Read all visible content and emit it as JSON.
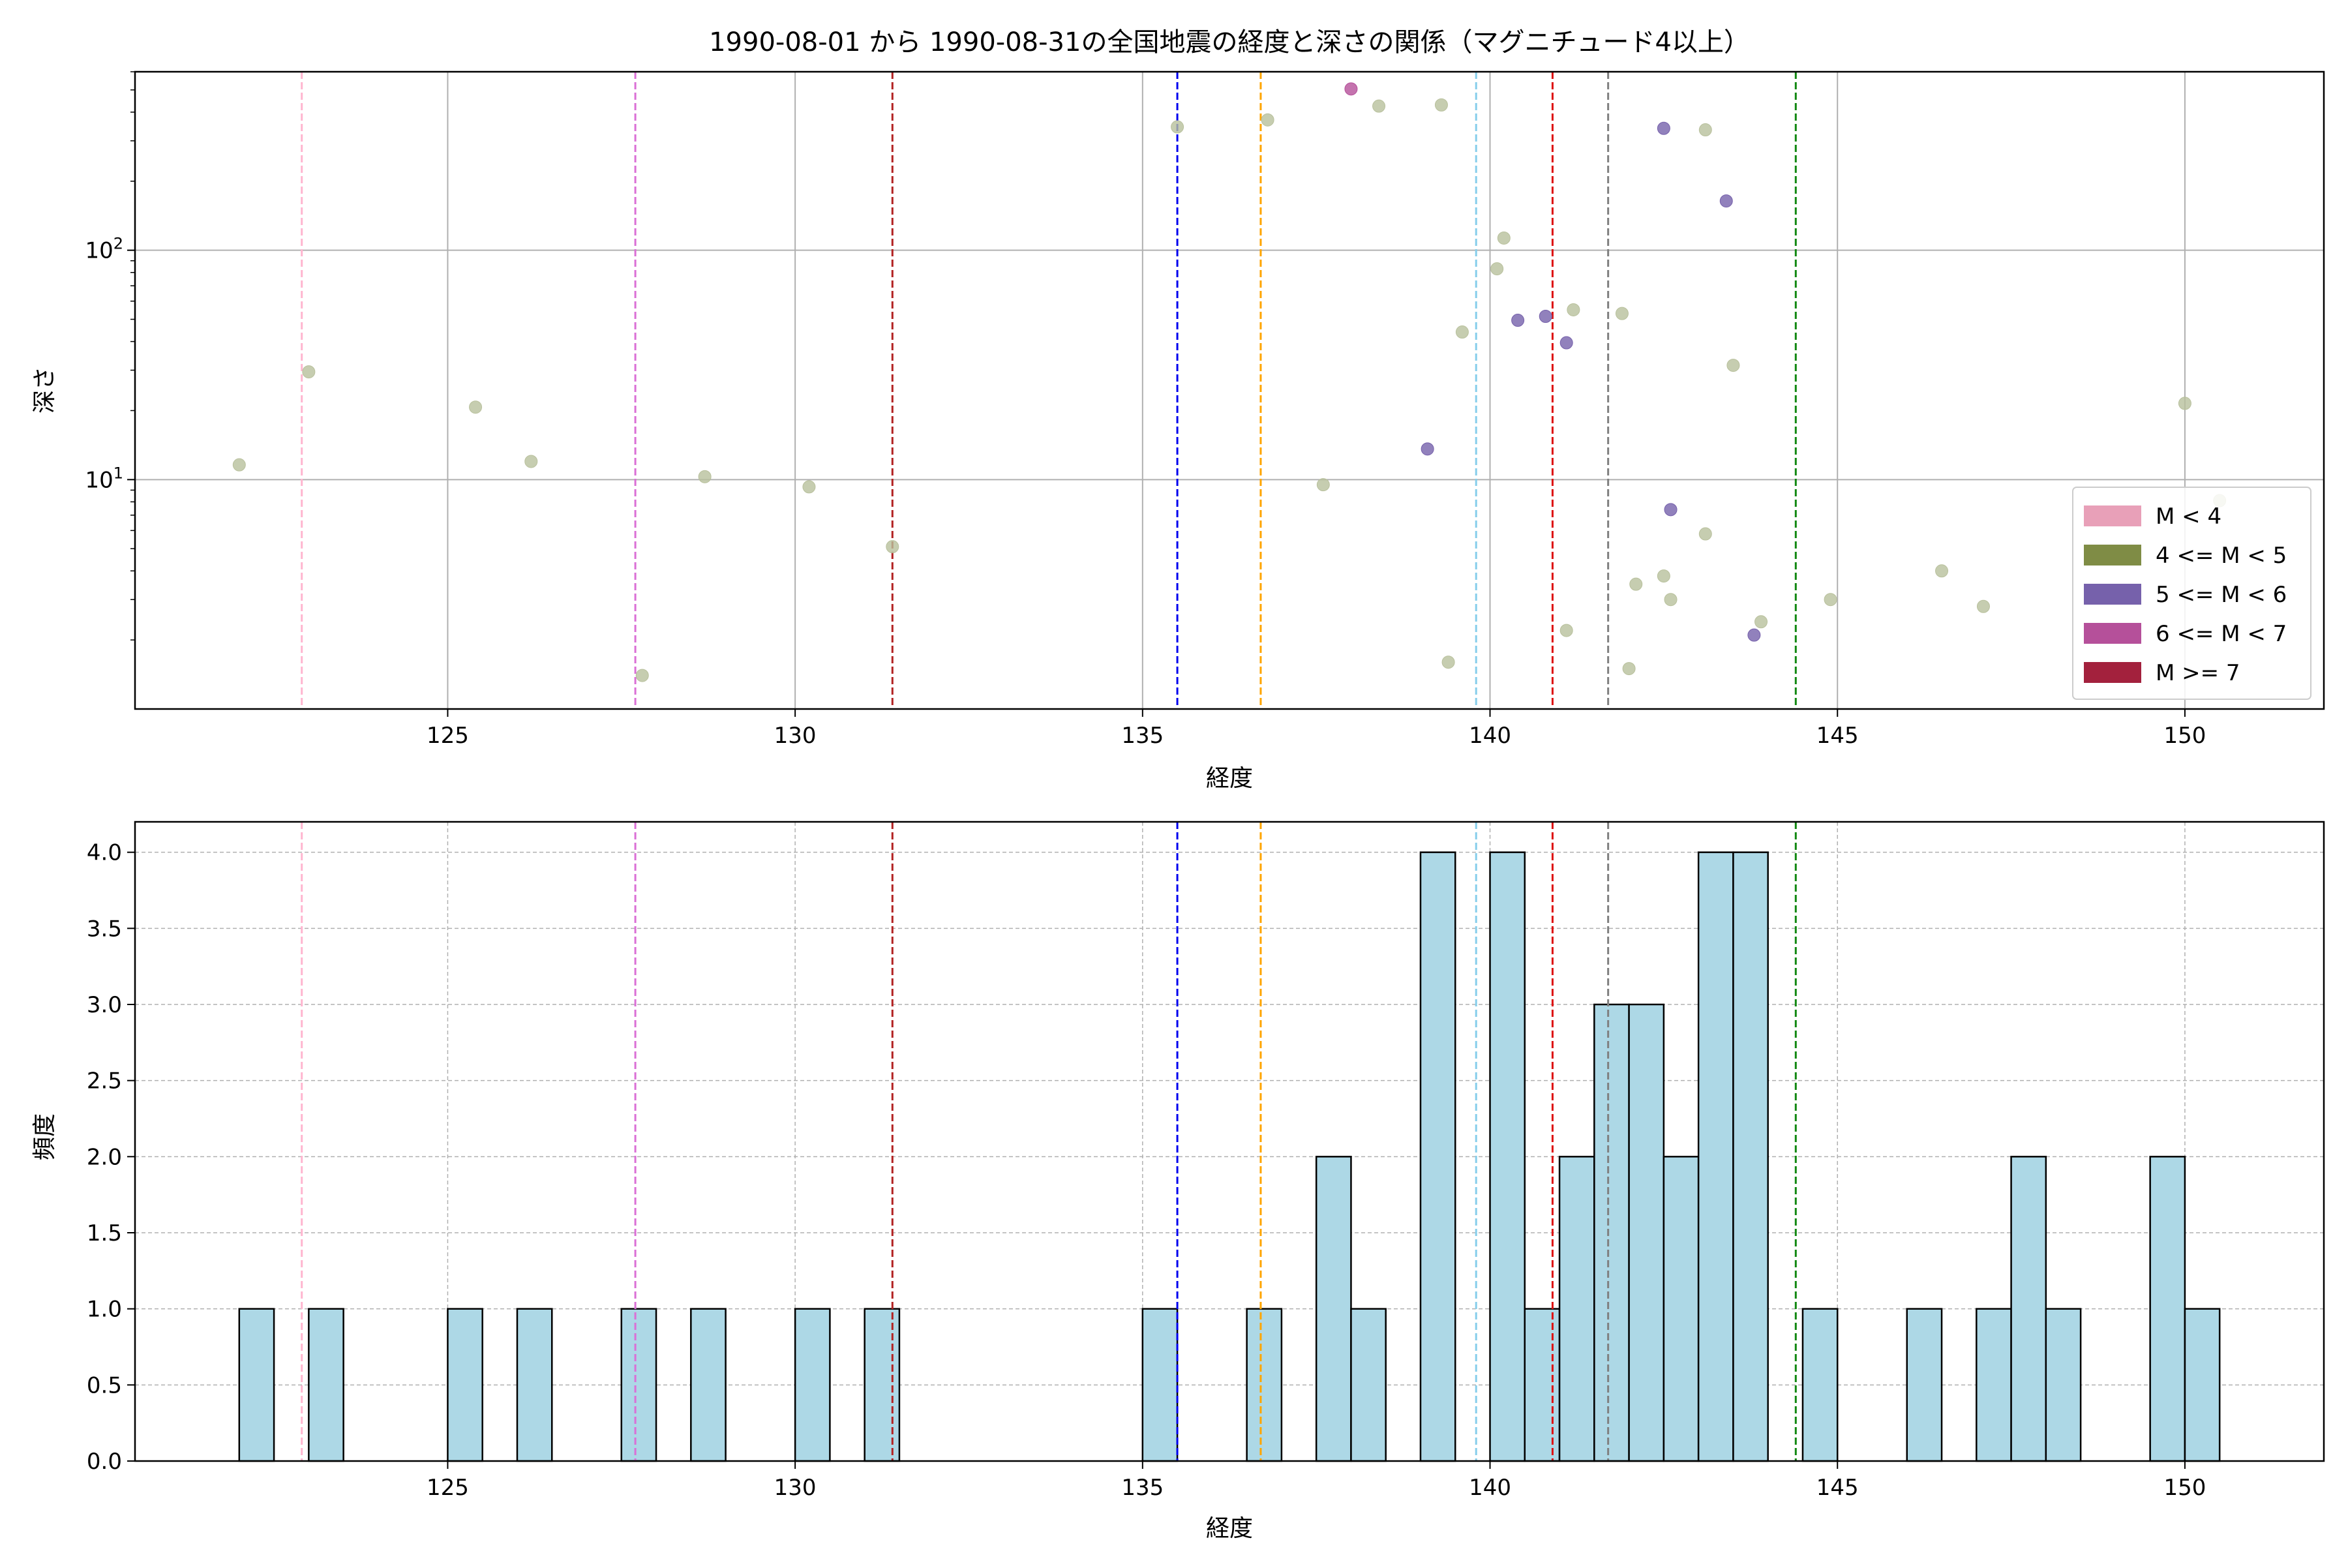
{
  "chart_data": [
    {
      "type": "scatter",
      "title": "1990-08-01 から 1990-08-31の全国地震の経度と深さの関係（マグニチュード4以上）",
      "xlabel": "経度",
      "ylabel": "深さ",
      "xlim": [
        120.5,
        152.0
      ],
      "ylim": [
        600,
        1
      ],
      "yscale": "log",
      "y_inverted": true,
      "x_ticks": [
        125,
        130,
        135,
        140,
        145,
        150
      ],
      "y_ticks": [
        {
          "value": 10,
          "label_base": "10",
          "label_exp": "1"
        },
        {
          "value": 100,
          "label_base": "10",
          "label_exp": "2"
        }
      ],
      "grid": true,
      "legend_position": "lower-right",
      "legend": [
        {
          "label": "M < 4",
          "color": "#e8a0b8"
        },
        {
          "label": "4 <= M < 5",
          "color": "#7f8c45"
        },
        {
          "label": "5 <= M < 6",
          "color": "#7661ab"
        },
        {
          "label": "6 <= M < 7",
          "color": "#b5509a"
        },
        {
          "label": "M >= 7",
          "color": "#a3213d"
        }
      ],
      "reference_lines": [
        {
          "x": 122.9,
          "color": "#ffb6d0"
        },
        {
          "x": 127.7,
          "color": "#da70d6"
        },
        {
          "x": 131.4,
          "color": "#b22222"
        },
        {
          "x": 135.5,
          "color": "#0000ee"
        },
        {
          "x": 136.7,
          "color": "#ffa500"
        },
        {
          "x": 139.8,
          "color": "#87ceeb"
        },
        {
          "x": 140.9,
          "color": "#dd1111"
        },
        {
          "x": 141.7,
          "color": "#808080"
        },
        {
          "x": 144.4,
          "color": "#118811"
        }
      ],
      "series": [
        {
          "category": "4 <= M < 5",
          "color": "#b8c09c",
          "points": [
            {
              "x": 122.0,
              "y": 11.6
            },
            {
              "x": 123.0,
              "y": 29.5
            },
            {
              "x": 125.4,
              "y": 20.7
            },
            {
              "x": 126.2,
              "y": 12.0
            },
            {
              "x": 127.8,
              "y": 1.4
            },
            {
              "x": 128.7,
              "y": 10.3
            },
            {
              "x": 130.2,
              "y": 9.3
            },
            {
              "x": 131.4,
              "y": 5.1
            },
            {
              "x": 135.5,
              "y": 345
            },
            {
              "x": 136.8,
              "y": 370
            },
            {
              "x": 137.6,
              "y": 9.5
            },
            {
              "x": 138.4,
              "y": 425
            },
            {
              "x": 139.3,
              "y": 430
            },
            {
              "x": 139.4,
              "y": 1.6
            },
            {
              "x": 139.6,
              "y": 44
            },
            {
              "x": 140.1,
              "y": 83
            },
            {
              "x": 140.2,
              "y": 113
            },
            {
              "x": 141.1,
              "y": 2.2
            },
            {
              "x": 141.2,
              "y": 55
            },
            {
              "x": 141.9,
              "y": 53
            },
            {
              "x": 142.0,
              "y": 1.5
            },
            {
              "x": 142.1,
              "y": 3.5
            },
            {
              "x": 142.5,
              "y": 3.8
            },
            {
              "x": 142.6,
              "y": 3.0
            },
            {
              "x": 143.1,
              "y": 5.8
            },
            {
              "x": 143.1,
              "y": 335
            },
            {
              "x": 143.5,
              "y": 31.5
            },
            {
              "x": 143.9,
              "y": 2.4
            },
            {
              "x": 144.9,
              "y": 3.0
            },
            {
              "x": 146.5,
              "y": 4.0
            },
            {
              "x": 147.1,
              "y": 2.8
            },
            {
              "x": 150.0,
              "y": 21.5
            },
            {
              "x": 150.5,
              "y": 8.1
            }
          ]
        },
        {
          "category": "5 <= M < 6",
          "color": "#7661ab",
          "points": [
            {
              "x": 139.1,
              "y": 13.6
            },
            {
              "x": 140.4,
              "y": 49.5
            },
            {
              "x": 140.8,
              "y": 51.5
            },
            {
              "x": 141.1,
              "y": 39.5
            },
            {
              "x": 142.5,
              "y": 340
            },
            {
              "x": 142.6,
              "y": 7.4
            },
            {
              "x": 143.4,
              "y": 164
            },
            {
              "x": 143.8,
              "y": 2.1
            }
          ]
        },
        {
          "category": "6 <= M < 7",
          "color": "#b5509a",
          "points": [
            {
              "x": 138.0,
              "y": 505
            }
          ]
        }
      ]
    },
    {
      "type": "bar",
      "xlabel": "経度",
      "ylabel": "頻度",
      "xlim": [
        120.5,
        152.0
      ],
      "ylim": [
        0,
        4.2
      ],
      "x_ticks": [
        125,
        130,
        135,
        140,
        145,
        150
      ],
      "y_ticks": [
        "0.0",
        "0.5",
        "1.0",
        "1.5",
        "2.0",
        "2.5",
        "3.0",
        "3.5",
        "4.0"
      ],
      "grid": true,
      "bar_color": "#add8e6",
      "bin_width": 0.5,
      "reference_lines": [
        {
          "x": 122.9,
          "color": "#ffb6d0"
        },
        {
          "x": 127.7,
          "color": "#da70d6"
        },
        {
          "x": 131.4,
          "color": "#b22222"
        },
        {
          "x": 135.5,
          "color": "#0000ee"
        },
        {
          "x": 136.7,
          "color": "#ffa500"
        },
        {
          "x": 139.8,
          "color": "#87ceeb"
        },
        {
          "x": 140.9,
          "color": "#dd1111"
        },
        {
          "x": 141.7,
          "color": "#808080"
        },
        {
          "x": 144.4,
          "color": "#118811"
        }
      ],
      "bins": [
        {
          "start": 122.0,
          "count": 1
        },
        {
          "start": 123.0,
          "count": 1
        },
        {
          "start": 125.0,
          "count": 1
        },
        {
          "start": 126.0,
          "count": 1
        },
        {
          "start": 127.5,
          "count": 1
        },
        {
          "start": 128.5,
          "count": 1
        },
        {
          "start": 130.0,
          "count": 1
        },
        {
          "start": 131.0,
          "count": 1
        },
        {
          "start": 135.0,
          "count": 1
        },
        {
          "start": 136.5,
          "count": 1
        },
        {
          "start": 137.5,
          "count": 2
        },
        {
          "start": 138.0,
          "count": 1
        },
        {
          "start": 139.0,
          "count": 4
        },
        {
          "start": 140.0,
          "count": 4
        },
        {
          "start": 140.5,
          "count": 1
        },
        {
          "start": 141.0,
          "count": 2
        },
        {
          "start": 141.5,
          "count": 3
        },
        {
          "start": 142.0,
          "count": 3
        },
        {
          "start": 142.5,
          "count": 2
        },
        {
          "start": 143.0,
          "count": 4
        },
        {
          "start": 143.5,
          "count": 4
        },
        {
          "start": 144.5,
          "count": 1
        },
        {
          "start": 146.0,
          "count": 1
        },
        {
          "start": 147.0,
          "count": 1
        },
        {
          "start": 147.5,
          "count": 2
        },
        {
          "start": 148.0,
          "count": 1
        },
        {
          "start": 149.5,
          "count": 2
        },
        {
          "start": 150.0,
          "count": 1
        }
      ]
    }
  ]
}
